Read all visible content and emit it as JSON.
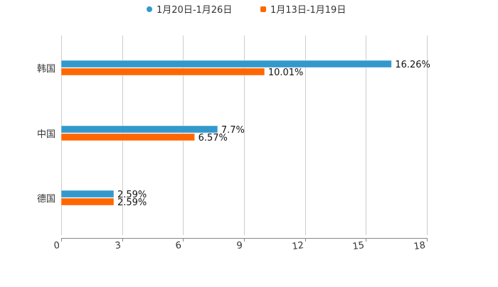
{
  "chart_data": {
    "type": "bar",
    "orientation": "horizontal",
    "title": "",
    "xlabel": "",
    "ylabel": "",
    "categories": [
      "韩国",
      "中国",
      "德国"
    ],
    "series": [
      {
        "name": "1月20日-1月26日",
        "color": "#3399cc",
        "values": [
          16.26,
          7.7,
          2.59
        ],
        "labels": [
          "16.26%",
          "7.7%",
          "2.59%"
        ]
      },
      {
        "name": "1月13日-1月19日",
        "color": "#ff6600",
        "values": [
          10.01,
          6.57,
          2.59
        ],
        "labels": [
          "10.01%",
          "6.57%",
          "2.59%"
        ]
      }
    ],
    "xlim": [
      0,
      18
    ],
    "xticks": [
      "0",
      "3",
      "6",
      "9",
      "12",
      "15",
      "18"
    ],
    "grid": true,
    "legend": "top-center"
  }
}
